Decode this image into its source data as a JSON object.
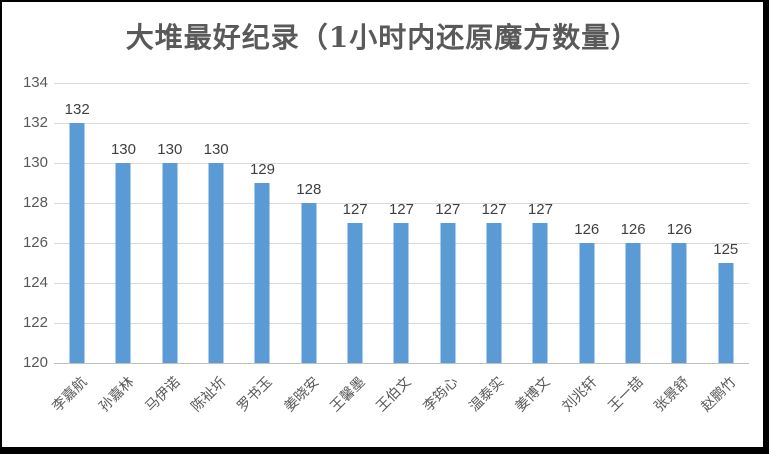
{
  "window": {
    "background": "#ffffff",
    "border_color": "#000000"
  },
  "chart_data": {
    "type": "bar",
    "title": "大堆最好纪录（1小时内还原魔方数量）",
    "categories": [
      "李嘉航",
      "孙嘉林",
      "马伊诺",
      "陈祉圻",
      "罗书玉",
      "姜晓安",
      "王馨墨",
      "王伯文",
      "李筠心",
      "温泰实",
      "姜博文",
      "刘兆轩",
      "王一喆",
      "张景舒",
      "赵鹏竹"
    ],
    "values": [
      132,
      130,
      130,
      130,
      129,
      128,
      127,
      127,
      127,
      127,
      127,
      126,
      126,
      126,
      125
    ],
    "data_labels": [
      "132",
      "130",
      "130",
      "130",
      "129",
      "128",
      "127",
      "127",
      "127",
      "127",
      "127",
      "126",
      "126",
      "126",
      "125"
    ],
    "xlabel": "",
    "ylabel": "",
    "ylim": [
      120,
      134
    ],
    "yticks": [
      120,
      122,
      124,
      126,
      128,
      130,
      132,
      134
    ],
    "grid": true,
    "legend_position": "none",
    "bar_color": "#5B9BD5",
    "gridline_color": "#D9D9D9",
    "axis_line_color": "#BFBFBF",
    "title_color": "#595959",
    "tick_color": "#595959",
    "data_label_color": "#404040"
  }
}
